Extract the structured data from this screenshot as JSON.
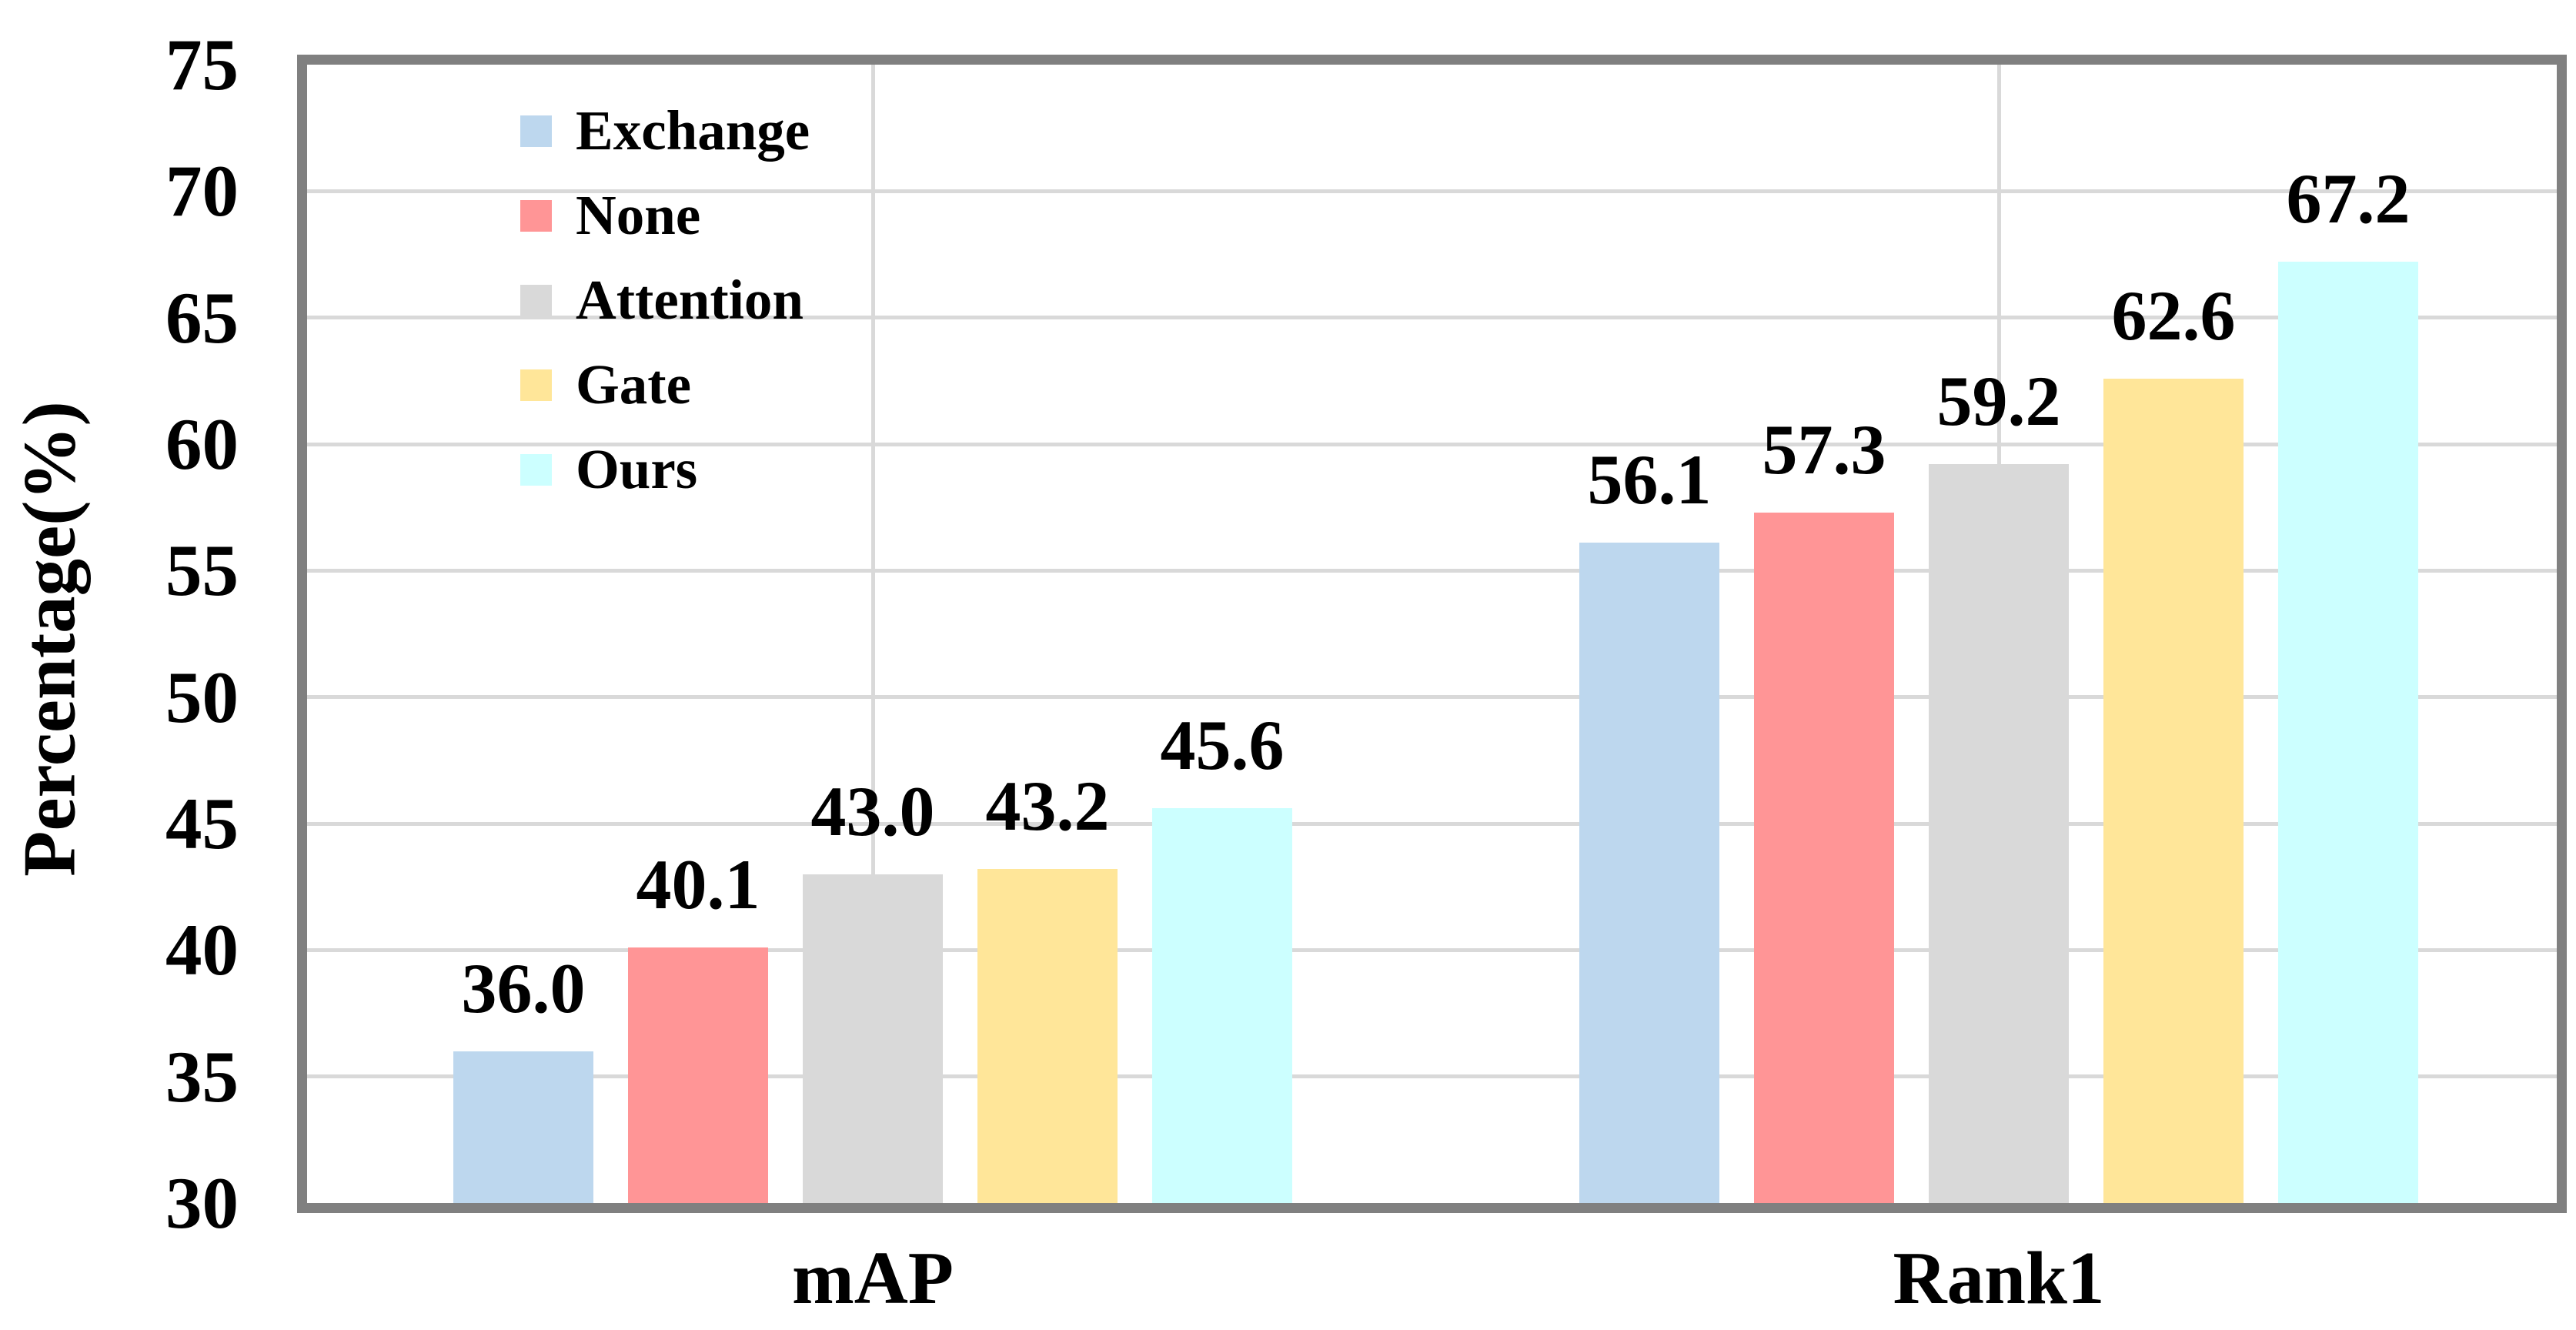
{
  "chart_data": {
    "type": "bar",
    "title": "",
    "categories": [
      "mAP",
      "Rank1"
    ],
    "series": [
      {
        "name": "Exchange",
        "color": "#BDD7EE",
        "values": [
          36.0,
          56.1
        ]
      },
      {
        "name": "None",
        "color": "#FF9596",
        "values": [
          40.1,
          57.3
        ]
      },
      {
        "name": "Attention",
        "color": "#D9D9D9",
        "values": [
          43.0,
          59.2
        ]
      },
      {
        "name": "Gate",
        "color": "#FFE699",
        "values": [
          43.2,
          62.6
        ]
      },
      {
        "name": "Ours",
        "color": "#CCFFFF",
        "values": [
          45.6,
          67.2
        ]
      }
    ],
    "value_labels": [
      [
        "36.0",
        "40.1",
        "43.0",
        "43.2",
        "45.6"
      ],
      [
        "56.1",
        "57.3",
        "59.2",
        "62.6",
        "67.2"
      ]
    ],
    "xlabel": "",
    "ylabel": "Percentage(%)",
    "ylim": [
      30,
      75
    ],
    "ytick_step": 5,
    "yticks": [
      "30",
      "35",
      "40",
      "45",
      "50",
      "55",
      "60",
      "65",
      "70",
      "75"
    ],
    "grid": true,
    "legend_position": "top-left-inside"
  },
  "colors": {
    "background": "#FFFFFF",
    "axis_border": "#808080",
    "gridline": "#D9D9D9",
    "text": "#000000"
  }
}
